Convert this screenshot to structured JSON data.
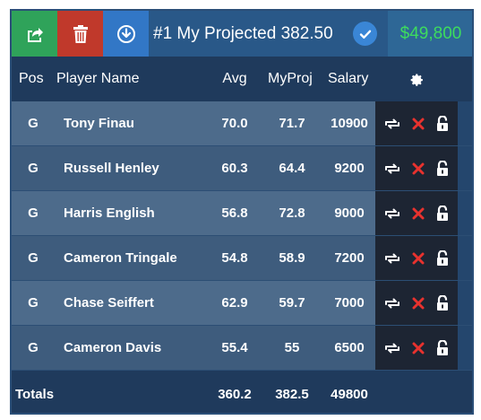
{
  "toolbar": {
    "title": "#1 My Projected 382.50",
    "salary": "$49,800",
    "icons": [
      "export-icon",
      "trash-icon",
      "download-icon",
      "check-icon"
    ]
  },
  "header": {
    "pos": "Pos",
    "name": "Player Name",
    "avg": "Avg",
    "myproj": "MyProj",
    "salary": "Salary",
    "settings_icon": "gear-icon"
  },
  "players": [
    {
      "pos": "G",
      "name": "Tony Finau",
      "avg": "70.0",
      "myproj": "71.7",
      "salary": "10900"
    },
    {
      "pos": "G",
      "name": "Russell Henley",
      "avg": "60.3",
      "myproj": "64.4",
      "salary": "9200"
    },
    {
      "pos": "G",
      "name": "Harris English",
      "avg": "56.8",
      "myproj": "72.8",
      "salary": "9000"
    },
    {
      "pos": "G",
      "name": "Cameron Tringale",
      "avg": "54.8",
      "myproj": "58.9",
      "salary": "7200"
    },
    {
      "pos": "G",
      "name": "Chase Seiffert",
      "avg": "62.9",
      "myproj": "59.7",
      "salary": "7000"
    },
    {
      "pos": "G",
      "name": "Cameron Davis",
      "avg": "55.4",
      "myproj": "55",
      "salary": "6500"
    }
  ],
  "row_action_icons": [
    "swap-icon",
    "remove-icon",
    "unlock-icon"
  ],
  "totals": {
    "label": "Totals",
    "avg": "360.2",
    "myproj": "382.5",
    "salary": "49800"
  },
  "colors": {
    "export": "#2fa35a",
    "delete": "#c0392b",
    "download": "#3277c6",
    "salary_text": "#3ddc5e",
    "remove_icon": "#e8322e"
  }
}
